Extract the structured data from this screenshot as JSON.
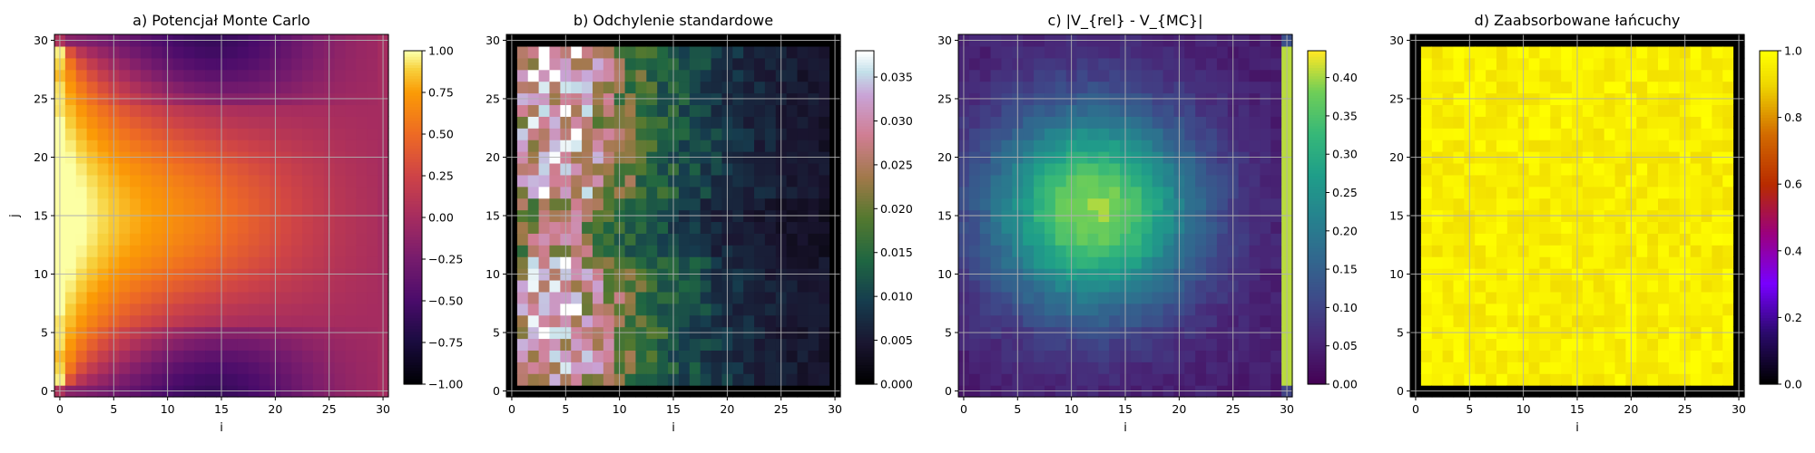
{
  "chart_data": [
    {
      "type": "heatmap",
      "title": "a) Potencjał Monte Carlo",
      "xlabel": "i",
      "ylabel": "j",
      "xlim": [
        -0.5,
        30.5
      ],
      "ylim": [
        -0.5,
        30.5
      ],
      "xticks": [
        "0",
        "5",
        "10",
        "15",
        "20",
        "25",
        "30"
      ],
      "yticks": [
        "0",
        "5",
        "10",
        "15",
        "20",
        "25",
        "30"
      ],
      "grid": true,
      "colormap": "inferno",
      "colorbar": {
        "min": -1.0,
        "max": 1.0,
        "ticks": [
          "−1.00",
          "−0.75",
          "−0.50",
          "−0.25",
          "0.00",
          "0.25",
          "0.50",
          "0.75",
          "1.00"
        ]
      },
      "field": "potential"
    },
    {
      "type": "heatmap",
      "title": "b) Odchylenie standardowe",
      "xlabel": "i",
      "ylabel": "",
      "xlim": [
        -0.5,
        30.5
      ],
      "ylim": [
        -0.5,
        30.5
      ],
      "xticks": [
        "0",
        "5",
        "10",
        "15",
        "20",
        "25",
        "30"
      ],
      "yticks": [
        "0",
        "5",
        "10",
        "15",
        "20",
        "25",
        "30"
      ],
      "grid": true,
      "colormap": "cubehelix",
      "colorbar": {
        "min": 0.0,
        "max": 0.038,
        "ticks": [
          "0.000",
          "0.005",
          "0.010",
          "0.015",
          "0.020",
          "0.025",
          "0.030",
          "0.035"
        ]
      },
      "field": "stddev"
    },
    {
      "type": "heatmap",
      "title": "c) |V_{rel} - V_{MC}|",
      "xlabel": "i",
      "ylabel": "",
      "xlim": [
        -0.5,
        30.5
      ],
      "ylim": [
        -0.5,
        30.5
      ],
      "xticks": [
        "0",
        "5",
        "10",
        "15",
        "20",
        "25",
        "30"
      ],
      "yticks": [
        "0",
        "5",
        "10",
        "15",
        "20",
        "25",
        "30"
      ],
      "grid": true,
      "colormap": "viridis",
      "colorbar": {
        "min": 0.0,
        "max": 0.435,
        "ticks": [
          "0.00",
          "0.05",
          "0.10",
          "0.15",
          "0.20",
          "0.25",
          "0.30",
          "0.35",
          "0.40"
        ]
      },
      "field": "absdiff"
    },
    {
      "type": "heatmap",
      "title": "d) Zaabsorbowane łańcuchy",
      "xlabel": "i",
      "ylabel": "",
      "xlim": [
        -0.5,
        30.5
      ],
      "ylim": [
        -0.5,
        30.5
      ],
      "xticks": [
        "0",
        "5",
        "10",
        "15",
        "20",
        "25",
        "30"
      ],
      "yticks": [
        "0",
        "5",
        "10",
        "15",
        "20",
        "25",
        "30"
      ],
      "grid": true,
      "colormap": "gnuplot",
      "colorbar": {
        "min": 0.0,
        "max": 1.0,
        "ticks": [
          "0.0",
          "0.2",
          "0.4",
          "0.6",
          "0.8",
          "1.0"
        ]
      },
      "field": "absorbed"
    }
  ]
}
